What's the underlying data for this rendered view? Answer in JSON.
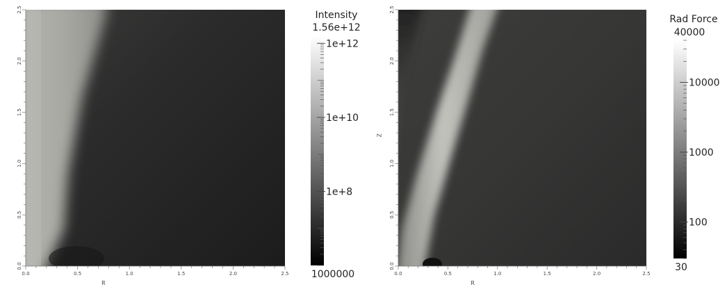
{
  "chart_data": [
    {
      "type": "heatmap",
      "xlabel": "R",
      "ylabel": "",
      "xlim": [
        0.0,
        2.5
      ],
      "ylim": [
        0.0,
        2.5
      ],
      "x_ticks": [
        "0.0",
        "0.5",
        "1.0",
        "1.5",
        "2.0",
        "2.5"
      ],
      "y_ticks": [
        "0.0",
        "0.5",
        "1.0",
        "1.5",
        "2.0",
        "2.5"
      ],
      "colorbar": {
        "title": "Intensity",
        "max_label": "1.56e+12",
        "min_label": "1000000",
        "scale": "log",
        "range": [
          1000000,
          1560000000000
        ],
        "ticks": [
          {
            "value": 1000000000000,
            "label": "1e+12"
          },
          {
            "value": 10000000000,
            "label": "1e+10"
          },
          {
            "value": 100000000,
            "label": "1e+8"
          }
        ]
      },
      "colormap": [
        "#000000",
        "#ffffff"
      ]
    },
    {
      "type": "heatmap",
      "xlabel": "R",
      "ylabel": "Z",
      "xlim": [
        0.0,
        2.5
      ],
      "ylim": [
        0.0,
        2.5
      ],
      "x_ticks": [
        "0.0",
        "0.5",
        "1.0",
        "1.5",
        "2.0",
        "2.5"
      ],
      "y_ticks": [
        "0.0",
        "0.5",
        "1.0",
        "1.5",
        "2.0",
        "2.5"
      ],
      "colorbar": {
        "title": "Rad Force",
        "max_label": "40000",
        "min_label": "30",
        "scale": "log",
        "range": [
          30,
          40000
        ],
        "ticks": [
          {
            "value": 10000,
            "label": "10000"
          },
          {
            "value": 1000,
            "label": "1000"
          },
          {
            "value": 100,
            "label": "100"
          }
        ]
      },
      "colormap": [
        "#000000",
        "#ffffff"
      ]
    }
  ]
}
